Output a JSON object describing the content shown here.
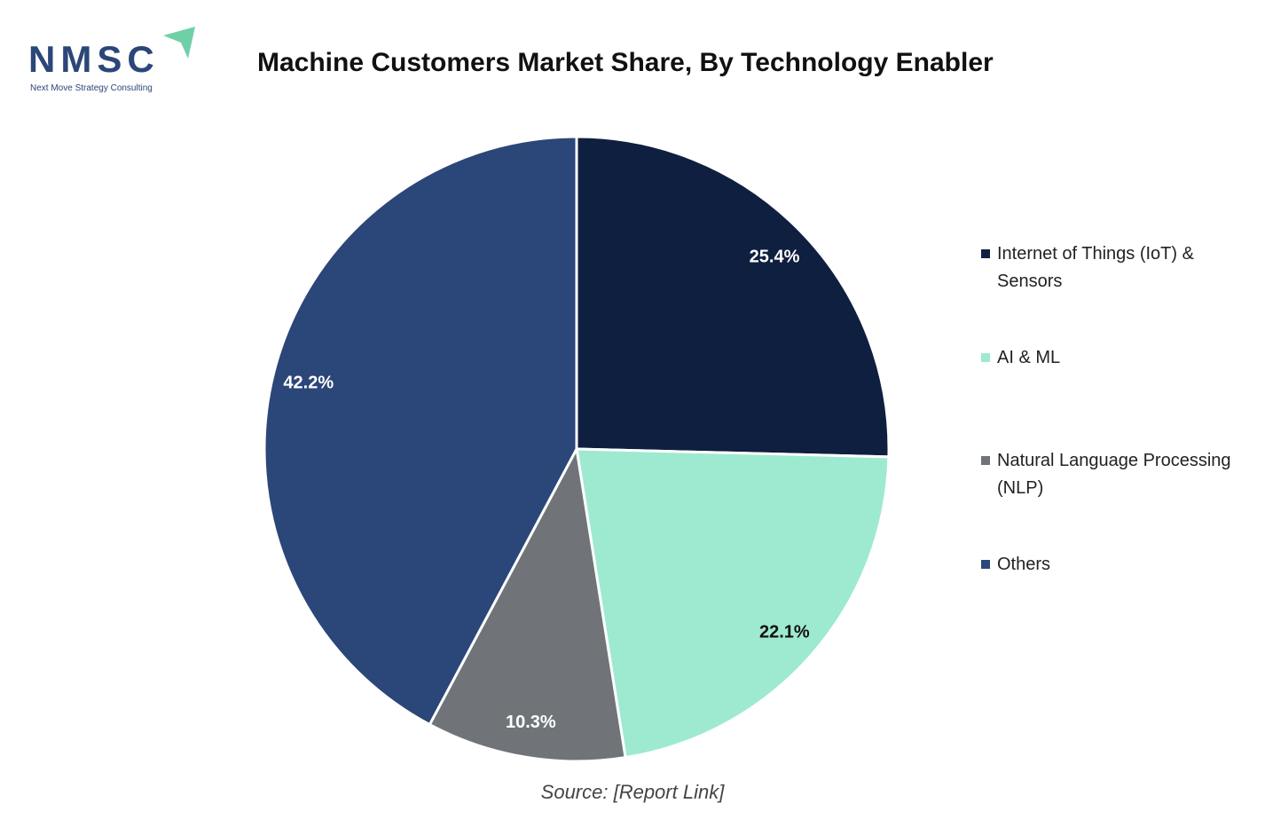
{
  "logo": {
    "text": "NMSC",
    "subtitle": "Next Move Strategy Consulting",
    "brand_color": "#2b4678",
    "accent_color": "#6fd0a8"
  },
  "chart_data": {
    "type": "pie",
    "title": "Machine Customers Market Share, By Technology Enabler",
    "start_angle": "12 o'clock",
    "direction": "clockwise",
    "legend_position": "right",
    "slices": [
      {
        "name": "Internet of Things (IoT) & Sensors",
        "value": 25.4,
        "label": "25.4%",
        "color": "#0f1f40",
        "label_color": "#ffffff"
      },
      {
        "name": "AI & ML",
        "value": 22.1,
        "label": "22.1%",
        "color": "#9eead0",
        "label_color": "#111111"
      },
      {
        "name": "Natural Language Processing (NLP)",
        "value": 10.3,
        "label": "10.3%",
        "color": "#707479",
        "label_color": "#ffffff"
      },
      {
        "name": "Others",
        "value": 42.2,
        "label": "42.2%",
        "color": "#2b4678",
        "label_color": "#ffffff"
      }
    ]
  },
  "source": "Source: [Report Link]"
}
